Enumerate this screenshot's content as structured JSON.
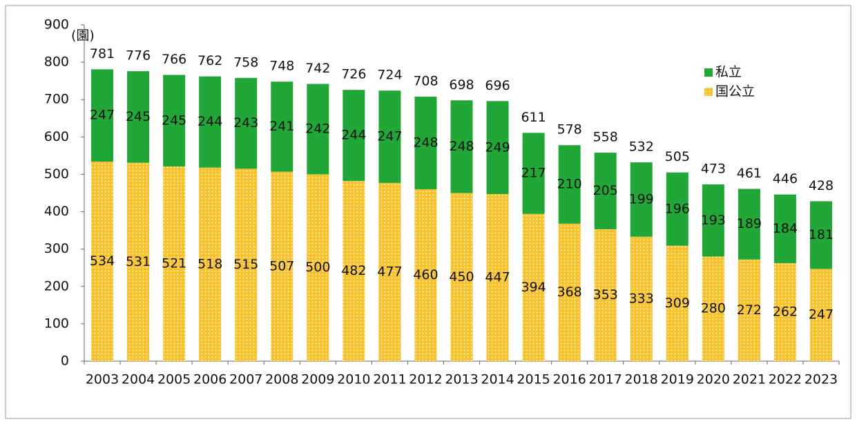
{
  "chart_data": {
    "type": "stacked_bar",
    "y_unit_label": "(園)",
    "categories": [
      "2003",
      "2004",
      "2005",
      "2006",
      "2007",
      "2008",
      "2009",
      "2010",
      "2011",
      "2012",
      "2013",
      "2014",
      "2015",
      "2016",
      "2017",
      "2018",
      "2019",
      "2020",
      "2021",
      "2022",
      "2023"
    ],
    "series": [
      {
        "name": "私立",
        "color": "#21a638",
        "pattern": "solid",
        "values": [
          247,
          245,
          245,
          244,
          243,
          241,
          242,
          244,
          247,
          248,
          248,
          249,
          217,
          210,
          205,
          199,
          196,
          193,
          189,
          184,
          181
        ]
      },
      {
        "name": "国公立",
        "color": "#f6c12a",
        "pattern": "dotted",
        "values": [
          534,
          531,
          521,
          518,
          515,
          507,
          500,
          482,
          477,
          460,
          450,
          447,
          394,
          368,
          353,
          333,
          309,
          280,
          272,
          262,
          247
        ]
      }
    ],
    "totals": [
      781,
      776,
      766,
      762,
      758,
      748,
      742,
      726,
      724,
      708,
      698,
      696,
      611,
      578,
      558,
      532,
      505,
      473,
      461,
      446,
      428
    ],
    "ylim": [
      0,
      900
    ],
    "yticks": [
      0,
      100,
      200,
      300,
      400,
      500,
      600,
      700,
      800,
      900
    ],
    "grid": false,
    "legend": "top-right"
  }
}
